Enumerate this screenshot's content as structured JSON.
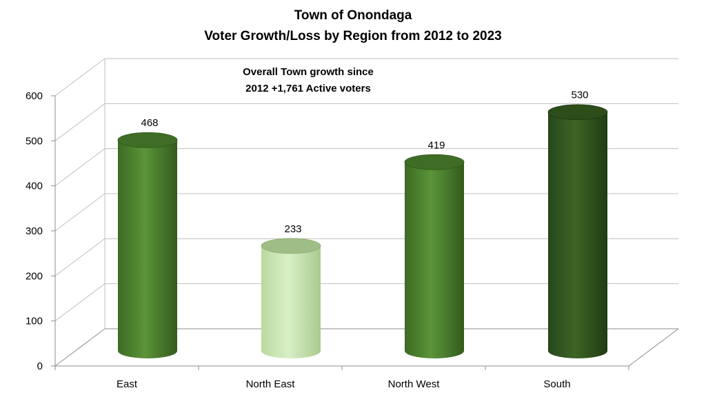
{
  "chart_data": {
    "type": "bar",
    "title": [
      "Town of Onondaga",
      "Voter Growth/Loss by Region from 2012 to 2023"
    ],
    "annotation": [
      "Overall Town growth since",
      "2012 +1,761 Active voters"
    ],
    "categories": [
      "East",
      "North East",
      "North West",
      "South"
    ],
    "values": [
      468,
      233,
      419,
      530
    ],
    "data_labels": [
      "468",
      "233",
      "419",
      "530"
    ],
    "ylim": [
      0,
      600
    ],
    "yticks": [
      0,
      100,
      200,
      300,
      400,
      500,
      600
    ],
    "xlabel": "",
    "ylabel": "",
    "grid": true,
    "legend": "none",
    "style": "3d-cylinder",
    "bar_colors": [
      "#4e7f2f",
      "#c6e2ac",
      "#4e7f2f",
      "#33561d"
    ]
  }
}
